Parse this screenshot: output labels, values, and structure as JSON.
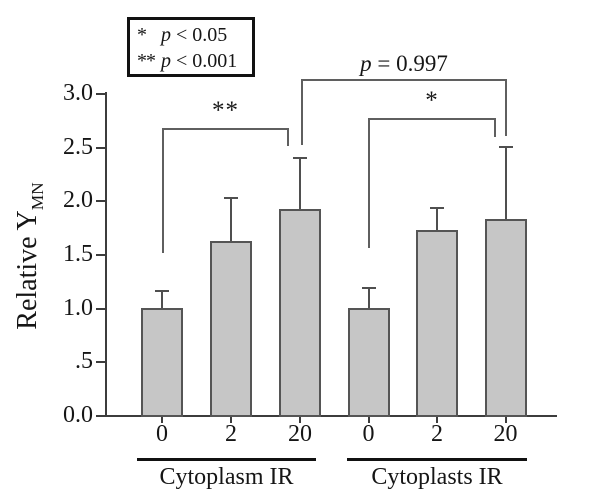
{
  "figure": {
    "background": "#ffffff",
    "bar_fill": "#c6c6c6",
    "bar_border": "#555555",
    "axis_color": "#3c3c3c",
    "error_color": "#4f4f4f",
    "bracket_color": "#5f5f5f",
    "text_color": "#161616",
    "legend_border": "#111111"
  },
  "legend": {
    "lines": [
      {
        "star": "*",
        "var": "p",
        "rel": " < 0.05"
      },
      {
        "star": "**",
        "var": "p",
        "rel": " < 0.001"
      }
    ]
  },
  "yaxis": {
    "title": "Relative Y",
    "title_sub": "MN"
  },
  "chart_data": {
    "type": "bar",
    "title": "",
    "ylabel": "Relative Y_MN",
    "xlabel": "",
    "ylim": [
      0,
      3
    ],
    "yticks": [
      3.0,
      2.5,
      2.0,
      1.5,
      1.0,
      0.5,
      0.0
    ],
    "ytick_labels": [
      "3.0",
      "2.5",
      "2.0",
      "1.5",
      "1.0",
      ".5",
      "0.0"
    ],
    "categories": [
      "0",
      "2",
      "20",
      "0",
      "2",
      "20"
    ],
    "group_labels": [
      "Cytoplasm IR",
      "Cytoplasts IR"
    ],
    "series": [
      {
        "name": "Relative Y_MN",
        "values": [
          1.0,
          1.62,
          1.92,
          1.0,
          1.72,
          1.83
        ],
        "errors_plus": [
          0.16,
          0.41,
          0.48,
          0.19,
          0.22,
          0.68
        ]
      }
    ],
    "significance": [
      {
        "between": [
          "Cytoplasm IR 0",
          "Cytoplasm IR 20"
        ],
        "label": "**"
      },
      {
        "between": [
          "Cytoplasts IR 0",
          "Cytoplasts IR 20"
        ],
        "label": "*"
      },
      {
        "between": [
          "Cytoplasm IR 20",
          "Cytoplasts IR 20"
        ],
        "label": "p = 0.997"
      }
    ],
    "legend_notes": [
      "* p < 0.05",
      "**p < 0.001"
    ],
    "grid": false,
    "legend_position": "top-left"
  }
}
